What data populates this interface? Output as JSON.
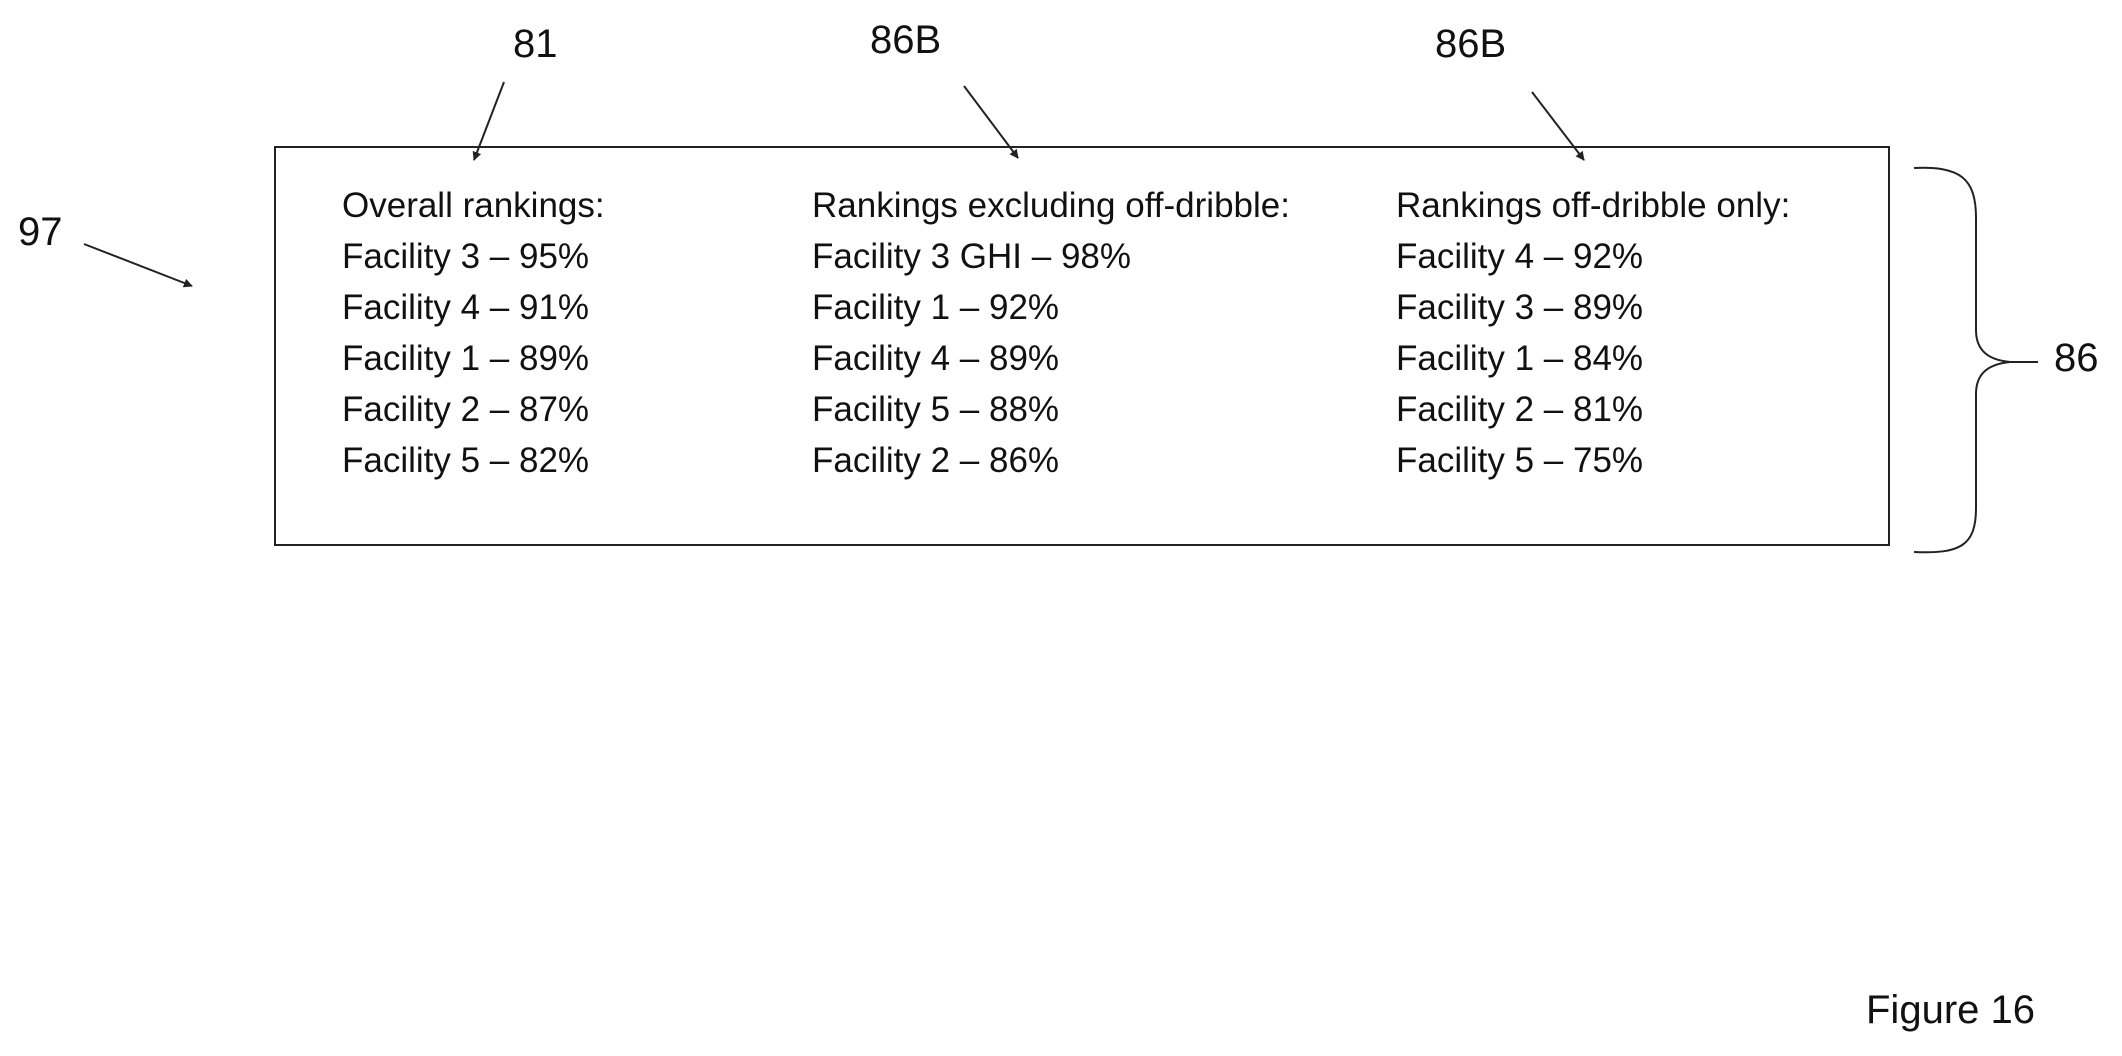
{
  "refs": {
    "r81": "81",
    "r86b_1": "86B",
    "r86b_2": "86B",
    "r97": "97",
    "r86": "86"
  },
  "columns": [
    {
      "heading": "Overall rankings:",
      "items": [
        "Facility 3 – 95%",
        "Facility 4 – 91%",
        "Facility 1 – 89%",
        "Facility 2 – 87%",
        "Facility 5 – 82%"
      ]
    },
    {
      "heading": "Rankings excluding off-dribble:",
      "items": [
        "Facility 3 GHI – 98%",
        "Facility 1 – 92%",
        "Facility 4 – 89%",
        "Facility 5 – 88%",
        "Facility 2 – 86%"
      ]
    },
    {
      "heading": "Rankings off-dribble only:",
      "items": [
        "Facility 4 – 92%",
        "Facility 3 – 89%",
        "Facility 1 – 84%",
        "Facility 2 – 81%",
        "Facility 5 – 75%"
      ]
    }
  ],
  "caption": "Figure 16"
}
